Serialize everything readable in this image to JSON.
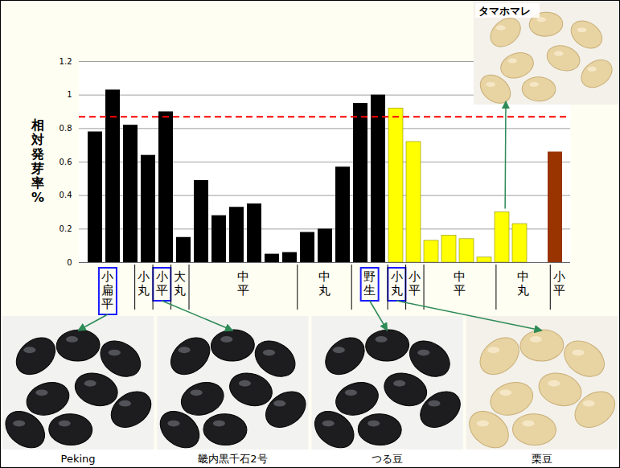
{
  "chart_data": {
    "type": "bar",
    "y_label": "相対発芽率%",
    "ylim": [
      0,
      1.2
    ],
    "yticks": [
      0,
      0.2,
      0.4,
      0.6,
      0.8,
      1,
      1.2
    ],
    "grid": true,
    "reference_line": {
      "value": 0.87,
      "color": "#ff0000",
      "line_style": "dashed"
    },
    "series": [
      {
        "color": "#000000",
        "groups": [
          {
            "label": "小扁平",
            "values": [
              0.78,
              1.03,
              0.82
            ],
            "photo": "Peking"
          },
          {
            "label": "小丸",
            "values": [
              0.64
            ]
          },
          {
            "label": "小平",
            "values": [
              0.9
            ],
            "photo": "畿内黒千石2号"
          },
          {
            "label": "大丸",
            "values": [
              0.15
            ]
          },
          {
            "label": "中平",
            "values": [
              0.49,
              0.28,
              0.33,
              0.35,
              0.05,
              0.06
            ]
          },
          {
            "label": "中丸",
            "values": [
              0.18,
              0.2,
              0.57
            ]
          },
          {
            "label": "野生",
            "values": [
              0.95,
              1.0
            ],
            "photo": "つる豆"
          }
        ]
      },
      {
        "color": "#ffff00",
        "groups": [
          {
            "label": "小丸",
            "values": [
              0.92
            ],
            "photo": "栗豆"
          },
          {
            "label": "小平",
            "values": [
              0.72
            ]
          },
          {
            "label": "中平",
            "values": [
              0.13,
              0.16,
              0.14,
              0.03
            ]
          },
          {
            "label": "中丸",
            "values": [
              0.3,
              0.23,
              0
            ],
            "photo_top": "タマホマレ"
          }
        ]
      },
      {
        "color": "#993300",
        "groups": [
          {
            "label": "小平",
            "values": [
              0.66
            ]
          }
        ]
      }
    ]
  }
}
